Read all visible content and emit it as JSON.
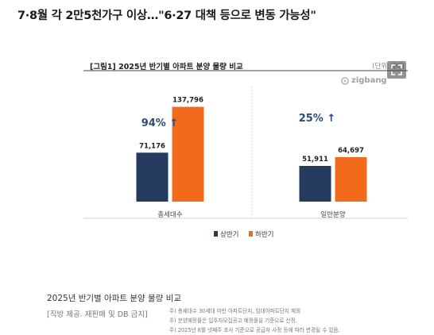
{
  "headline": "7·8월 각 2만5천가구 이상…\"6·27 대책 등으로 변동 가능성\"",
  "figure": {
    "title": "[그림1] 2025년 반기별 아파트 분양 물량 비교",
    "unit": "(단위:세대)",
    "logo_text": "zigbang"
  },
  "chart_data": {
    "type": "bar",
    "title": "[그림1] 2025년 반기별 아파트 분양 물량 비교",
    "categories": [
      "총세대수",
      "일반분양"
    ],
    "series": [
      {
        "name": "상반기",
        "values": [
          71176,
          51911
        ]
      },
      {
        "name": "하반기",
        "values": [
          137796,
          64697
        ]
      }
    ],
    "value_labels": [
      [
        "71,176",
        "51,911"
      ],
      [
        "137,796",
        "64,697"
      ]
    ],
    "growth_labels": [
      "94% ↑",
      "25% ↑"
    ],
    "colors": {
      "first_half": "#243a5e",
      "second_half": "#f26b1d",
      "growth_text": "#2f4a78"
    },
    "ylim": [
      0,
      150000
    ],
    "xlabel": "",
    "ylabel": "",
    "legend_position": "bottom-right",
    "grid": false
  },
  "notes": [
    "주) 총세대수 30세대 미만 아파트단지, 임대아파트단지 제외",
    "주) 분양예정물은 입주자모집공고 예정물을 기준으로 산정.",
    "주) 2025년 6월 넷째주 조사 기준으로 공급자 사정 등에 따라 변경될 수 있음."
  ],
  "caption": "2025년 반기별 아파트 분양 물량 비교",
  "credit": "[직방 제공. 재판매 및 DB 금지]"
}
